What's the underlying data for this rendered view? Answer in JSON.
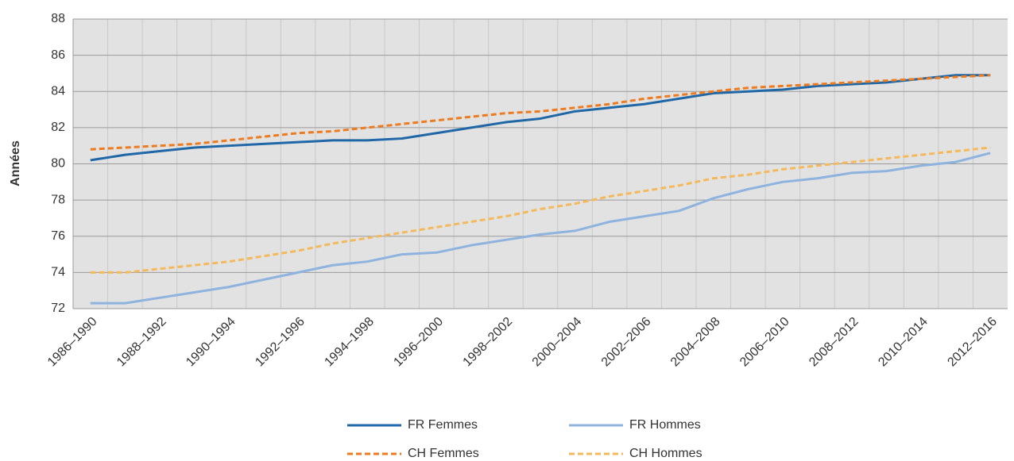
{
  "chart_data": {
    "type": "line",
    "ylabel": "Années",
    "categories": [
      "1986–1990",
      null,
      "1988–1992",
      null,
      "1990–1994",
      null,
      "1992–1996",
      null,
      "1994–1998",
      null,
      "1996–2000",
      null,
      "1998–2002",
      null,
      "2000–2004",
      null,
      "2002–2006",
      null,
      "2004–2008",
      null,
      "2006–2010",
      null,
      "2008–2012",
      null,
      "2010–2014",
      null,
      "2012–2016"
    ],
    "series": [
      {
        "name": "FR Femmes",
        "color": "#1f67a6",
        "dashed": false,
        "values": [
          80.2,
          80.5,
          80.7,
          80.9,
          81.0,
          81.1,
          81.2,
          81.3,
          81.3,
          81.4,
          81.7,
          82.0,
          82.3,
          82.5,
          82.9,
          83.1,
          83.3,
          83.6,
          83.9,
          84.0,
          84.1,
          84.3,
          84.4,
          84.5,
          84.7,
          84.9,
          84.9
        ]
      },
      {
        "name": "FR Hommes",
        "color": "#8db3de",
        "dashed": false,
        "values": [
          72.3,
          72.3,
          72.6,
          72.9,
          73.2,
          73.6,
          74.0,
          74.4,
          74.6,
          75.0,
          75.1,
          75.5,
          75.8,
          76.1,
          76.3,
          76.8,
          77.1,
          77.4,
          78.1,
          78.6,
          79.0,
          79.2,
          79.5,
          79.6,
          79.9,
          80.1,
          80.6
        ]
      },
      {
        "name": "CH Femmes",
        "color": "#ef7b1f",
        "dashed": true,
        "values": [
          80.8,
          80.9,
          81.0,
          81.1,
          81.3,
          81.5,
          81.7,
          81.8,
          82.0,
          82.2,
          82.4,
          82.6,
          82.8,
          82.9,
          83.1,
          83.3,
          83.6,
          83.8,
          84.0,
          84.2,
          84.3,
          84.4,
          84.5,
          84.6,
          84.7,
          84.8,
          84.9
        ]
      },
      {
        "name": "CH Hommes",
        "color": "#f5b95a",
        "dashed": true,
        "values": [
          74.0,
          74.0,
          74.2,
          74.4,
          74.6,
          74.9,
          75.2,
          75.6,
          75.9,
          76.2,
          76.5,
          76.8,
          77.1,
          77.5,
          77.8,
          78.2,
          78.5,
          78.8,
          79.2,
          79.4,
          79.7,
          79.9,
          80.1,
          80.3,
          80.5,
          80.7,
          80.9
        ]
      }
    ],
    "ylim": [
      72,
      88
    ],
    "yticks": [
      72,
      74,
      76,
      78,
      80,
      82,
      84,
      86,
      88
    ],
    "grid": true,
    "legend": "bottom"
  }
}
